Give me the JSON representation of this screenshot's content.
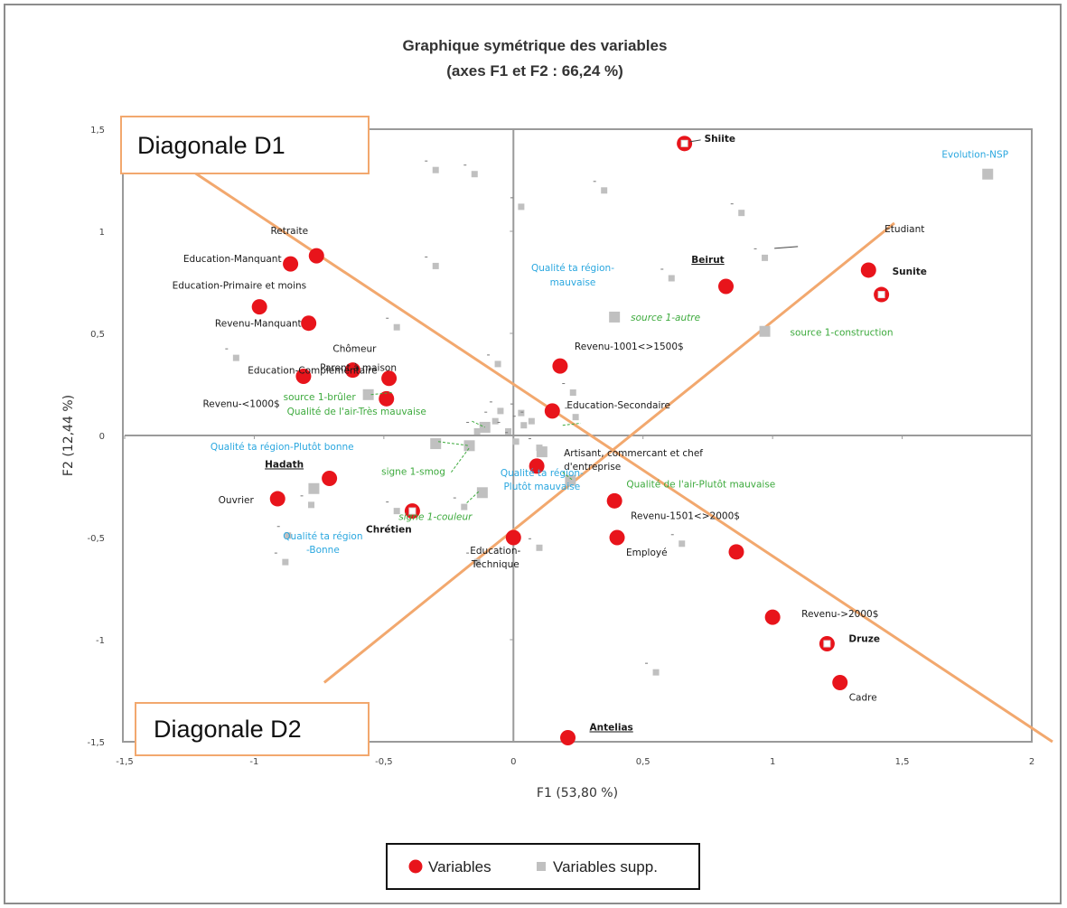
{
  "chart_data": {
    "type": "scatter",
    "title": "Graphique symétrique des variables",
    "subtitle": "(axes F1 et F2 : 66,24 %)",
    "xlabel": "F1 (53,80 %)",
    "ylabel": "F2 (12,44 %)",
    "xlim": [
      -1.5,
      2
    ],
    "ylim": [
      -1.5,
      1.5
    ],
    "xticks": [
      "-1,5",
      "-1",
      "-0,5",
      "0",
      "0,5",
      "1",
      "1,5",
      "2"
    ],
    "yticks": [
      "-1,5",
      "-1",
      "-0,5",
      "0",
      "0,5",
      "1",
      "1,5"
    ],
    "grid": false,
    "legend_position": "bottom",
    "colors": {
      "variables": "#e8141b",
      "supp": "#c0c0c0",
      "label_black": "#1a1a1a",
      "label_blue": "#2aa7df",
      "label_green": "#3daa3d",
      "diagonal": "#f2a86e",
      "axis": "#9a9a9a"
    },
    "series": [
      {
        "name": "Variables",
        "points": [
          {
            "x": 0.66,
            "y": 1.43,
            "label": "Shiite",
            "label_bold": true,
            "hollow": true
          },
          {
            "x": -0.76,
            "y": 0.88,
            "label": "Retraite"
          },
          {
            "x": -0.86,
            "y": 0.84,
            "label": "Education-Manquant"
          },
          {
            "x": -0.98,
            "y": 0.63,
            "label": "Education-Primaire  et moins"
          },
          {
            "x": -0.79,
            "y": 0.55,
            "label": "Revenu-Manquant"
          },
          {
            "x": -0.62,
            "y": 0.32,
            "label": "Chômeur"
          },
          {
            "x": -0.48,
            "y": 0.28,
            "label": "Parent à maison"
          },
          {
            "x": -0.81,
            "y": 0.29,
            "label": "Education-Complémentaire"
          },
          {
            "x": -0.49,
            "y": 0.18,
            "label": "Revenu-<1000$"
          },
          {
            "x": 0.82,
            "y": 0.73,
            "label": "Beirut",
            "label_bold": true,
            "underline": true
          },
          {
            "x": 1.37,
            "y": 0.81,
            "label": "Etudiant"
          },
          {
            "x": 1.42,
            "y": 0.69,
            "label": "Sunite",
            "label_bold": true,
            "hollow": true
          },
          {
            "x": 0.18,
            "y": 0.34,
            "label": "Revenu-1001<>1500$"
          },
          {
            "x": 0.15,
            "y": 0.12,
            "label": "Education-Secondaire"
          },
          {
            "x": 0.09,
            "y": -0.15,
            "label": "Artisant, commercant  et chef d'entreprise"
          },
          {
            "x": 0.39,
            "y": -0.32,
            "label": "Revenu-1501<>2000$"
          },
          {
            "x": 0.4,
            "y": -0.5,
            "label": "Employé"
          },
          {
            "x": 0.86,
            "y": -0.57,
            "label": ""
          },
          {
            "x": 0.0,
            "y": -0.5,
            "label": "Education-Technique"
          },
          {
            "x": -0.71,
            "y": -0.21,
            "label": "Hadath",
            "label_bold": true,
            "underline": true
          },
          {
            "x": -0.91,
            "y": -0.31,
            "label": "Ouvrier"
          },
          {
            "x": -0.39,
            "y": -0.37,
            "label": "Chrétien",
            "label_bold": true,
            "hollow": true
          },
          {
            "x": 1.0,
            "y": -0.89,
            "label": "Revenu->2000$"
          },
          {
            "x": 1.21,
            "y": -1.02,
            "label": "Druze",
            "label_bold": true,
            "hollow": true
          },
          {
            "x": 1.26,
            "y": -1.21,
            "label": "Cadre"
          },
          {
            "x": 0.21,
            "y": -1.48,
            "label": "Antelias",
            "label_bold": true,
            "underline": true
          }
        ]
      },
      {
        "name": "Variables supp.",
        "points": [
          {
            "x": 1.83,
            "y": 1.28,
            "label": "Evolution-NSP",
            "color": "blue",
            "big": true
          },
          {
            "x": 0.39,
            "y": 0.58,
            "label": "source 1-autre",
            "color": "green",
            "italic": true,
            "big": true
          },
          {
            "x": 0.97,
            "y": 0.51,
            "label": "source 1-construction",
            "color": "green",
            "big": true
          },
          {
            "x": -0.56,
            "y": 0.2,
            "label": "source 1-brûler",
            "color": "green",
            "big": true
          },
          {
            "x": -0.11,
            "y": 0.04,
            "label": "Qualité de l'air-Très mauvaise",
            "color": "green",
            "big": true
          },
          {
            "x": -0.3,
            "y": -0.04,
            "label": "Qualité ta région-Plutôt bonne",
            "color": "blue",
            "big": true
          },
          {
            "x": -0.17,
            "y": -0.05,
            "label": "signe 1-smog",
            "color": "green",
            "big": true
          },
          {
            "x": 0.22,
            "y": -0.22,
            "label": "Qualité de l'air-Plutôt mauvaise",
            "color": "green",
            "big": true
          },
          {
            "x": -0.12,
            "y": -0.28,
            "label": "signe 1-couleur",
            "color": "green",
            "italic": true,
            "big": true
          },
          {
            "x": -0.77,
            "y": -0.26,
            "label": "Qualité ta région -Bonne",
            "color": "blue",
            "big": true
          },
          {
            "x": 0.11,
            "y": -0.08,
            "label": "Qualité ta région-Plutôt mauvaise",
            "color": "blue",
            "big": true
          },
          {
            "x": -0.15,
            "y": 1.28
          },
          {
            "x": -0.3,
            "y": 1.3
          },
          {
            "x": 0.03,
            "y": 1.12
          },
          {
            "x": 0.35,
            "y": 1.2
          },
          {
            "x": 0.88,
            "y": 1.09
          },
          {
            "x": 0.61,
            "y": 0.77
          },
          {
            "x": 0.97,
            "y": 0.87
          },
          {
            "x": -0.3,
            "y": 0.83
          },
          {
            "x": -0.45,
            "y": 0.53
          },
          {
            "x": -1.07,
            "y": 0.38
          },
          {
            "x": -0.06,
            "y": 0.35
          },
          {
            "x": 0.23,
            "y": 0.21
          },
          {
            "x": -0.07,
            "y": 0.07
          },
          {
            "x": 0.04,
            "y": 0.05
          },
          {
            "x": -0.05,
            "y": 0.12
          },
          {
            "x": 0.03,
            "y": 0.11
          },
          {
            "x": 0.07,
            "y": 0.07
          },
          {
            "x": -0.02,
            "y": 0.02
          },
          {
            "x": 0.01,
            "y": -0.03
          },
          {
            "x": -0.14,
            "y": 0.02
          },
          {
            "x": 0.1,
            "y": -0.06
          },
          {
            "x": -0.45,
            "y": -0.37
          },
          {
            "x": -0.78,
            "y": -0.34
          },
          {
            "x": -0.87,
            "y": -0.49
          },
          {
            "x": -0.88,
            "y": -0.62
          },
          {
            "x": 0.1,
            "y": -0.55
          },
          {
            "x": -0.14,
            "y": -0.62
          },
          {
            "x": 0.55,
            "y": -1.16
          },
          {
            "x": 0.65,
            "y": -0.53
          },
          {
            "x": -0.19,
            "y": -0.35
          },
          {
            "x": 0.24,
            "y": 0.09
          }
        ]
      }
    ],
    "diagonals": [
      {
        "label": "Diagonale D1",
        "from": [
          -1.4,
          1.43
        ],
        "to": [
          2.08,
          -1.5
        ]
      },
      {
        "label": "Diagonale D2",
        "from": [
          -0.73,
          -1.21
        ],
        "to": [
          1.47,
          1.04
        ]
      }
    ]
  },
  "legend": {
    "items": [
      {
        "label": "Variables",
        "marker": "circle"
      },
      {
        "label": "Variables supp.",
        "marker": "square"
      }
    ]
  }
}
